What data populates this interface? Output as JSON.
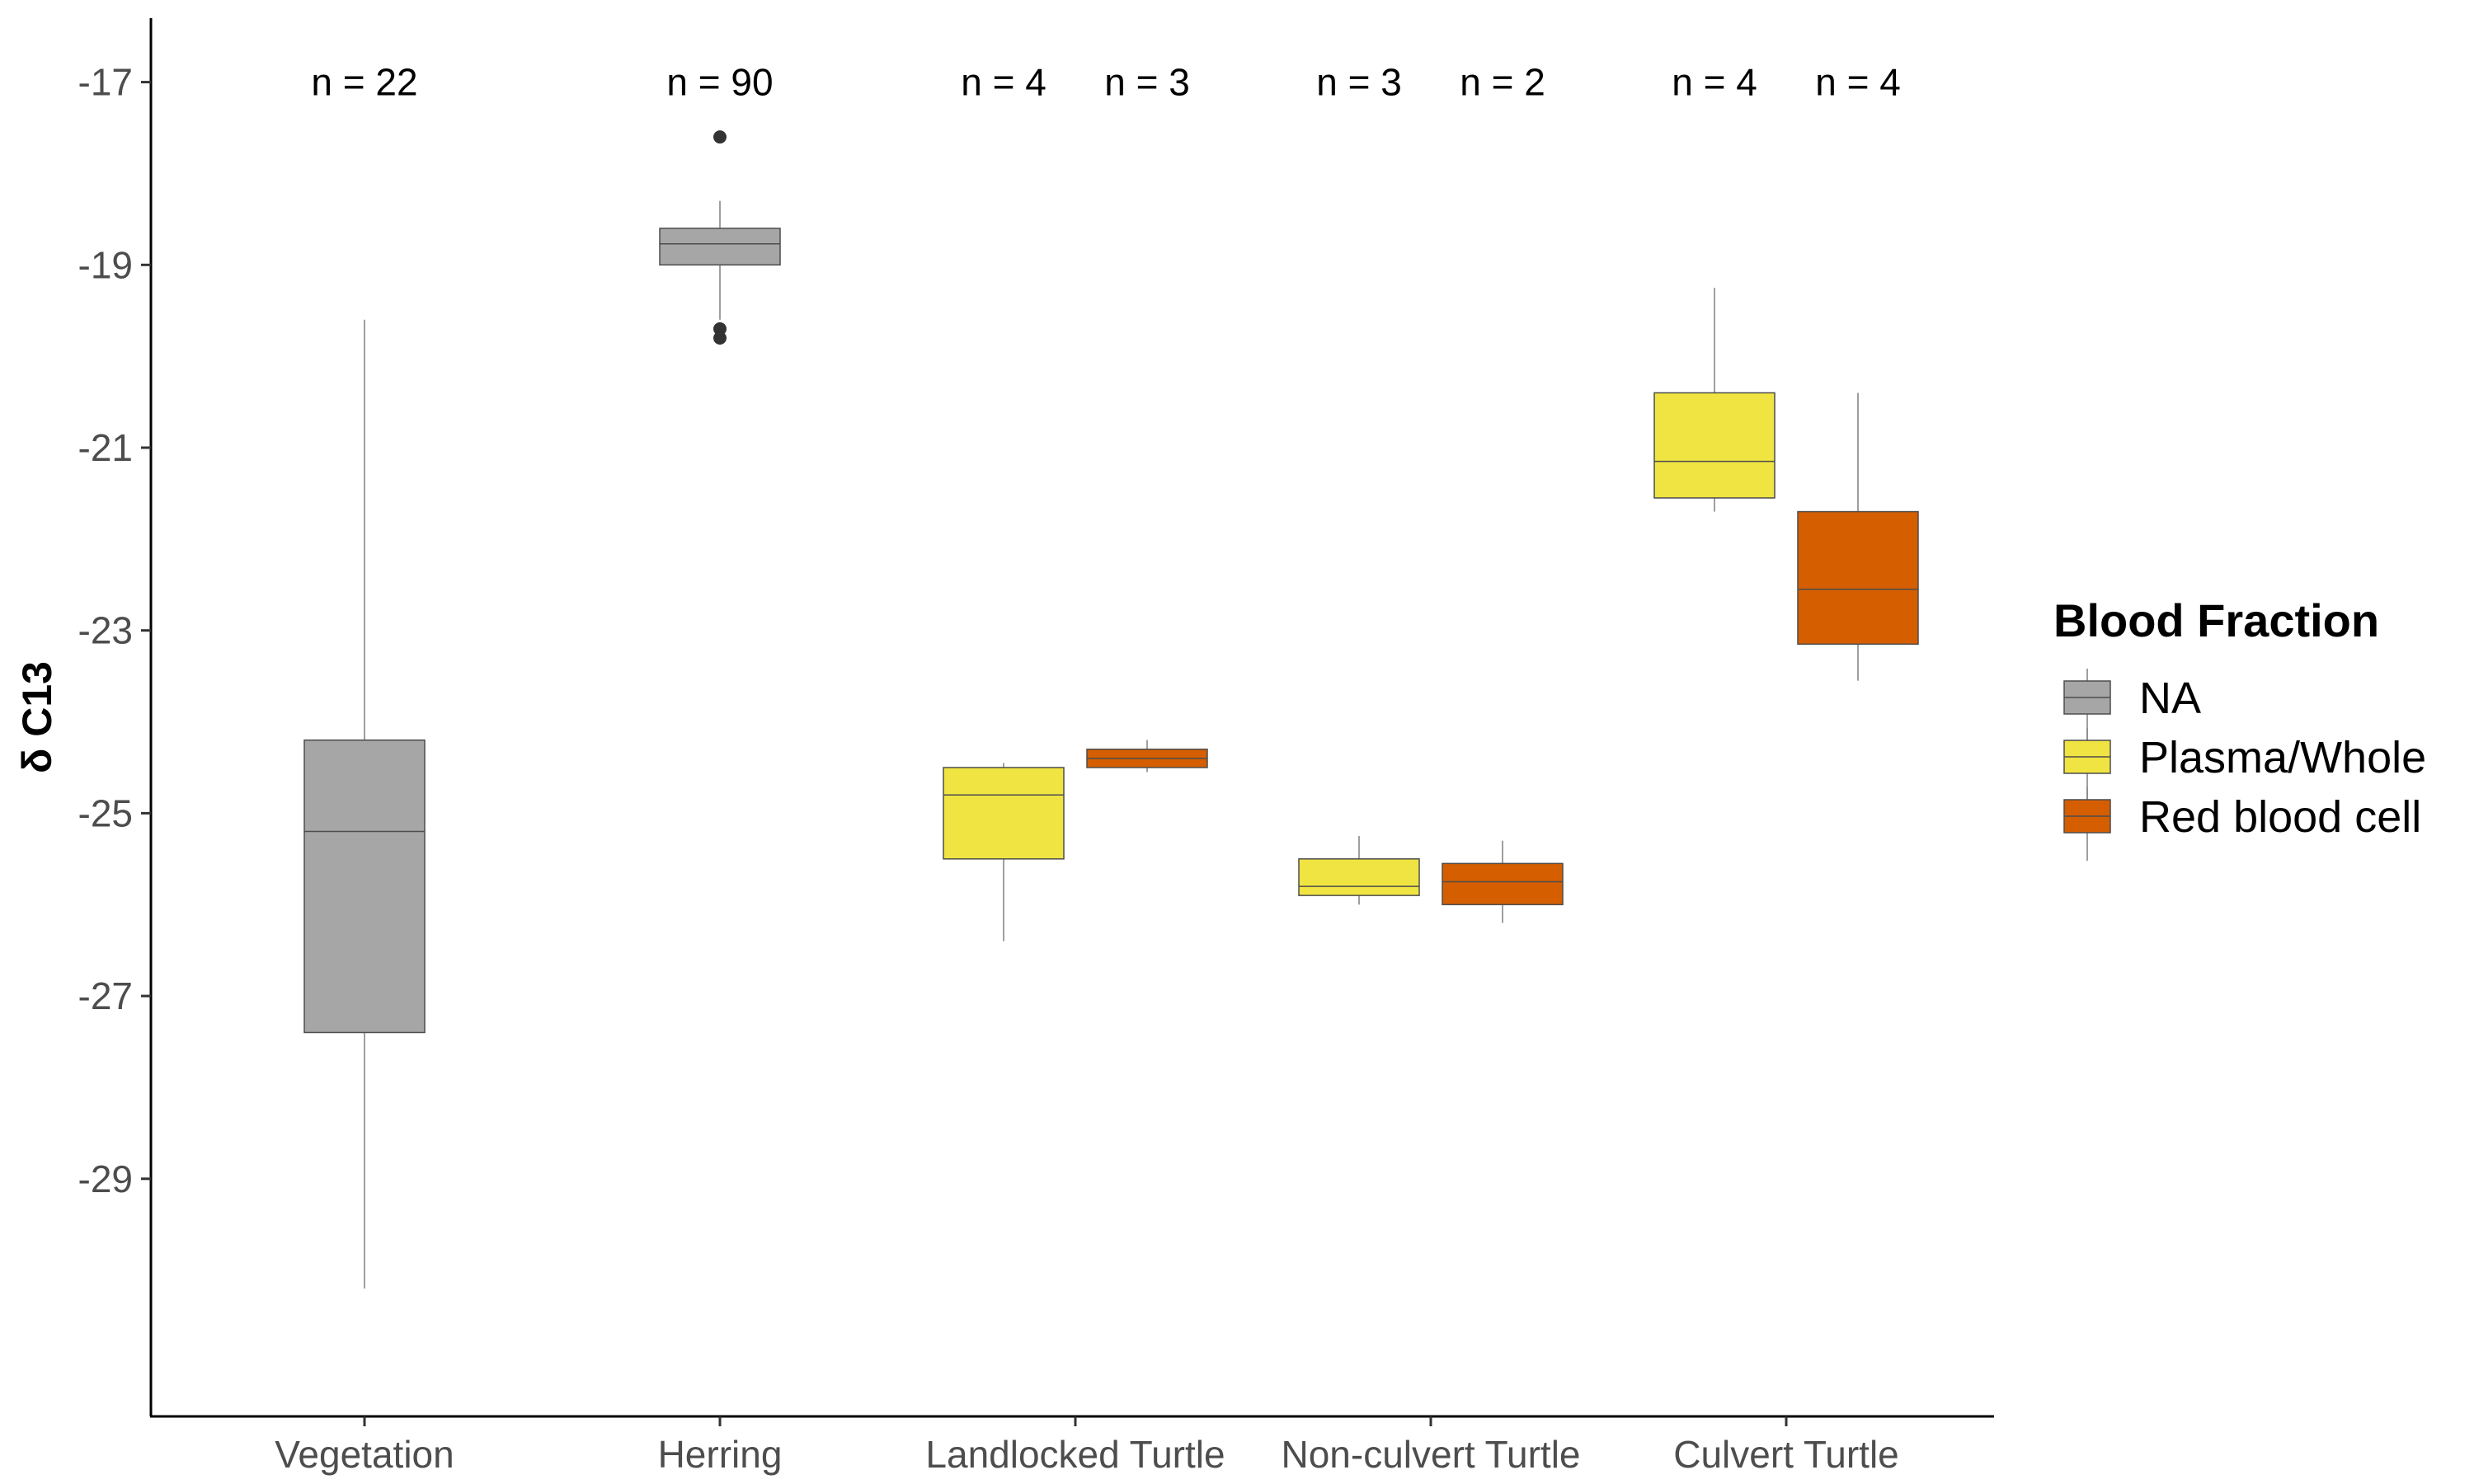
{
  "chart_data": {
    "type": "box",
    "ylabel": "δ C13",
    "xlabel": "",
    "ylim": [
      -31.6,
      -16.3
    ],
    "yticks": [
      -17,
      -19,
      -21,
      -23,
      -25,
      -27,
      -29
    ],
    "yticklabels": [
      "-17",
      "-19",
      "-21",
      "-23",
      "-25",
      "-27",
      "-29"
    ],
    "categories": [
      "Vegetation",
      "Herring",
      "Landlocked Turtle",
      "Non-culvert Turtle",
      "Culvert Turtle"
    ],
    "grid": false,
    "legend": {
      "title": "Blood Fraction",
      "position": "right",
      "entries": [
        {
          "label": "NA",
          "color": "#a6a6a6"
        },
        {
          "label": "Plasma/Whole",
          "color": "#f0e442"
        },
        {
          "label": "Red blood cell",
          "color": "#d55e00"
        }
      ]
    },
    "boxes": [
      {
        "category": "Vegetation",
        "group": "NA",
        "slot": 0,
        "slots": 1,
        "whisker_low": -30.2,
        "q1": -27.4,
        "median": -25.2,
        "q3": -24.2,
        "whisker_high": -19.6,
        "outliers": [],
        "n_label": "n = 22"
      },
      {
        "category": "Herring",
        "group": "NA",
        "slot": 0,
        "slots": 1,
        "whisker_low": -19.6,
        "q1": -19.0,
        "median": -18.77,
        "q3": -18.6,
        "whisker_high": -18.3,
        "outliers": [
          -17.6,
          -19.7,
          -19.8
        ],
        "n_label": "n = 90"
      },
      {
        "category": "Landlocked Turtle",
        "group": "Plasma/Whole",
        "slot": 0,
        "slots": 2,
        "whisker_low": -26.4,
        "q1": -25.5,
        "median": -24.8,
        "q3": -24.5,
        "whisker_high": -24.45,
        "outliers": [],
        "n_label": "n = 4"
      },
      {
        "category": "Landlocked Turtle",
        "group": "Red blood cell",
        "slot": 1,
        "slots": 2,
        "whisker_low": -24.55,
        "q1": -24.5,
        "median": -24.4,
        "q3": -24.3,
        "whisker_high": -24.2,
        "outliers": [],
        "n_label": "n = 3"
      },
      {
        "category": "Non-culvert Turtle",
        "group": "Plasma/Whole",
        "slot": 0,
        "slots": 2,
        "whisker_low": -26.0,
        "q1": -25.9,
        "median": -25.8,
        "q3": -25.5,
        "whisker_high": -25.25,
        "outliers": [],
        "n_label": "n = 3"
      },
      {
        "category": "Non-culvert Turtle",
        "group": "Red blood cell",
        "slot": 1,
        "slots": 2,
        "whisker_low": -26.2,
        "q1": -26.0,
        "median": -25.75,
        "q3": -25.55,
        "whisker_high": -25.3,
        "outliers": [],
        "n_label": "n = 2"
      },
      {
        "category": "Culvert Turtle",
        "group": "Plasma/Whole",
        "slot": 0,
        "slots": 2,
        "whisker_low": -21.7,
        "q1": -21.55,
        "median": -21.15,
        "q3": -20.4,
        "whisker_high": -19.25,
        "outliers": [],
        "n_label": "n = 4"
      },
      {
        "category": "Culvert Turtle",
        "group": "Red blood cell",
        "slot": 1,
        "slots": 2,
        "whisker_low": -23.55,
        "q1": -23.15,
        "median": -22.55,
        "q3": -21.7,
        "whisker_high": -20.4,
        "outliers": [],
        "n_label": "n = 4"
      }
    ],
    "n_label_y": -17
  }
}
